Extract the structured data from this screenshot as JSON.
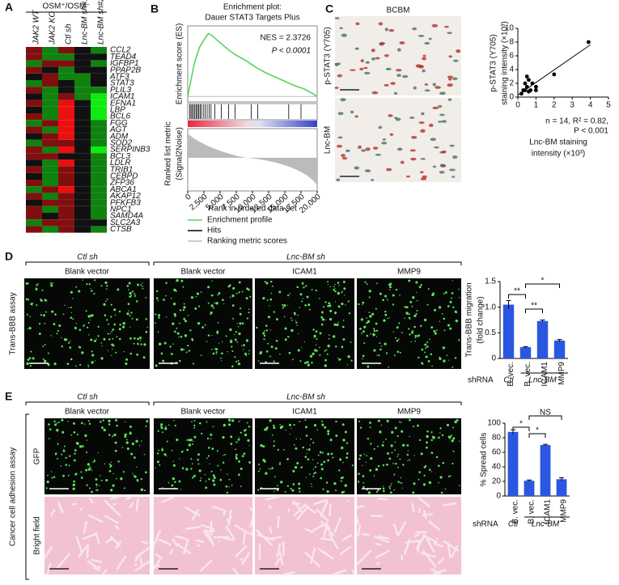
{
  "panel_a": {
    "letter": "A",
    "group": "OSM⁺/OSM⁻",
    "columns": [
      "JAK2 WT",
      "JAK2 KO",
      "Ctl sh",
      "Lnc-BM sh#1",
      "Lnc-BM sh#2"
    ],
    "genes": [
      "CCL2",
      "TEAD4",
      "IGFBP1",
      "PPAP2B",
      "ATF3",
      "STAT3",
      "PLIL3",
      "ICAM1",
      "EFNA1",
      "LBP",
      "BCL6",
      "FGG",
      "AGT",
      "ADM",
      "SOD2",
      "SERPINB3",
      "BCL3",
      "LDLR",
      "TRIB1",
      "CEBPD",
      "ZFP36",
      "ABCA1",
      "AKAP12",
      "PFKFB3",
      "NPC1",
      "SAMD4A",
      "SLC2A3",
      "CTSB"
    ],
    "values": [
      [
        1,
        -1,
        1,
        0,
        -1
      ],
      [
        1,
        -1,
        -1,
        0,
        0
      ],
      [
        -1,
        1,
        1,
        0,
        -1
      ],
      [
        1,
        0,
        -1,
        0,
        0
      ],
      [
        0,
        1,
        -1,
        -1,
        0
      ],
      [
        -1,
        1,
        0,
        -1,
        0
      ],
      [
        1,
        -1,
        0,
        -1,
        -1
      ],
      [
        0,
        -1,
        1,
        -1,
        -2
      ],
      [
        1,
        -1,
        2,
        0,
        -2
      ],
      [
        0,
        -1,
        2,
        0,
        -2
      ],
      [
        1,
        -1,
        2,
        0,
        -2
      ],
      [
        -1,
        1,
        2,
        0,
        -1
      ],
      [
        1,
        -1,
        2,
        0,
        -1
      ],
      [
        0,
        1,
        2,
        0,
        -1
      ],
      [
        -1,
        1,
        1,
        0,
        -1
      ],
      [
        1,
        -1,
        2,
        0,
        -2
      ],
      [
        1,
        1,
        0,
        0,
        -1
      ],
      [
        0,
        -1,
        2,
        0,
        -1
      ],
      [
        1,
        -1,
        1,
        0,
        -1
      ],
      [
        0,
        -1,
        1,
        0,
        -1
      ],
      [
        1,
        -1,
        1,
        0,
        -1
      ],
      [
        -1,
        1,
        2,
        0,
        -1
      ],
      [
        1,
        -1,
        1,
        0,
        -1
      ],
      [
        0,
        1,
        1,
        0,
        -1
      ],
      [
        1,
        -1,
        1,
        0,
        -1
      ],
      [
        1,
        0,
        1,
        0,
        -1
      ],
      [
        -1,
        1,
        1,
        0,
        0
      ],
      [
        1,
        -1,
        1,
        0,
        -1
      ]
    ]
  },
  "panel_b": {
    "letter": "B",
    "title": "Enrichment plot:",
    "subtitle": "Dauer STAT3 Targets Plus",
    "nes": "NES = 2.3726",
    "p_value": "P < 0.0001",
    "es_label": "Enrichment score (ES)",
    "metric_label": [
      "Ranked list metric",
      "(Signal2Noise)"
    ],
    "xlabel": "Rank in ordered data set",
    "xlim": [
      0,
      20000
    ],
    "xticks": [
      0,
      {
        "value": 2500,
        "label": "2,500"
      },
      {
        "value": 5000,
        "label": "5,000"
      },
      {
        "value": 7500,
        "label": "7,500"
      },
      {
        "value": 10000,
        "label": "10,000"
      },
      {
        "value": 12500,
        "label": "12,500"
      },
      {
        "value": 15000,
        "label": "15,000"
      },
      {
        "value": 17500,
        "label": "17,500"
      },
      {
        "value": 20000,
        "label": "20,000"
      }
    ],
    "ylim": [
      -0.05,
      0.65
    ],
    "es_x": [
      0,
      500,
      1000,
      1800,
      2500,
      3200,
      3800,
      4500,
      5500,
      6500,
      7500,
      9000,
      10500,
      12000,
      13500,
      15000,
      16500,
      18000,
      19500,
      20000
    ],
    "es_y": [
      0,
      0.15,
      0.3,
      0.45,
      0.52,
      0.58,
      0.56,
      0.52,
      0.47,
      0.42,
      0.38,
      0.33,
      0.27,
      0.22,
      0.18,
      0.14,
      0.1,
      0.07,
      0.02,
      0
    ],
    "hits": [
      300,
      500,
      700,
      900,
      1100,
      1300,
      1500,
      1700,
      1900,
      2100,
      2400,
      2700,
      3000,
      3300,
      3600,
      4200,
      5200,
      6300,
      7300,
      9800,
      10800,
      15600,
      17500
    ],
    "legend": [
      "Enrichment profile",
      "Hits",
      "Ranking metric scores"
    ]
  },
  "panel_c": {
    "letter": "C",
    "image_title": "BCBM",
    "image_labels": [
      "p-STAT3 (Y705)",
      "Lnc-BM"
    ],
    "chart_data": {
      "type": "scatter",
      "x": [
        0.2,
        0.3,
        0.4,
        0.4,
        0.5,
        0.5,
        0.6,
        0.6,
        0.7,
        0.8,
        1,
        1,
        2,
        3.9
      ],
      "y": [
        0.5,
        1,
        2,
        1,
        1.5,
        3,
        2.5,
        0.8,
        1,
        2,
        1.5,
        1,
        3.3,
        8
      ],
      "xlim": [
        0,
        5
      ],
      "xticks": [
        0,
        1,
        2,
        3,
        4,
        5
      ],
      "ylim": [
        0,
        10
      ],
      "yticks": [
        0,
        2,
        4,
        6,
        8,
        10
      ],
      "xlabel": [
        "Lnc-BM staining",
        "intensity (×10³)"
      ],
      "ylabel": [
        "p-STAT3 (Y705)",
        "staining intensity (×10³)"
      ],
      "annotation": [
        "n = 14, R² = 0.82,",
        "P < 0.001"
      ],
      "fit_line": {
        "x": [
          0,
          4
        ],
        "y": [
          0.3,
          7.6
        ]
      }
    }
  },
  "panel_d": {
    "letter": "D",
    "group_headers": [
      "Ctl sh",
      "Lnc-BM sh"
    ],
    "image_labels": [
      "Blank vector",
      "Blank vector",
      "ICAM1",
      "MMP9"
    ],
    "side_label": "Trans-BBB assay",
    "chart_data": {
      "type": "bar",
      "categories": [
        "B. vec.",
        "B. vec.",
        "ICAM1",
        "MMP9"
      ],
      "values": [
        1.05,
        0.22,
        0.73,
        0.35
      ],
      "errors": [
        0.08,
        0.01,
        0.02,
        0.02
      ],
      "color": "#2b57e0",
      "ylim": [
        0,
        1.5
      ],
      "yticks": [
        0,
        0.5,
        {
          "value": 1,
          "label": "1.0"
        },
        1.5
      ],
      "ylabel": [
        "Trans-BBB migration",
        "(fold change)"
      ],
      "significance": [
        "**",
        "**",
        "*"
      ],
      "row_label": "shRNA",
      "groups": [
        "Ctl",
        "Lnc-BM"
      ]
    }
  },
  "panel_e": {
    "letter": "E",
    "group_headers": [
      "Ctl sh",
      "Lnc-BM sh"
    ],
    "image_labels": [
      "Blank vector",
      "Blank vector",
      "ICAM1",
      "MMP9"
    ],
    "side_label": "Cancer cell adhesion assay",
    "row_labels": [
      "GFP",
      "Bright field"
    ],
    "chart_data": {
      "type": "bar",
      "categories": [
        "B. vec.",
        "B. vec.",
        "ICAM1",
        "MMP9"
      ],
      "values": [
        88,
        21,
        70,
        23
      ],
      "errors": [
        3,
        1,
        1,
        2
      ],
      "color": "#2b57e0",
      "ylim": [
        0,
        100
      ],
      "yticks": [
        0,
        20,
        40,
        60,
        80,
        100
      ],
      "ylabel": [
        "% Spread cells"
      ],
      "significance": [
        "*",
        "*",
        "NS"
      ],
      "row_label": "shRNA",
      "groups": [
        "Ctl",
        "Lnc-BM"
      ]
    }
  }
}
